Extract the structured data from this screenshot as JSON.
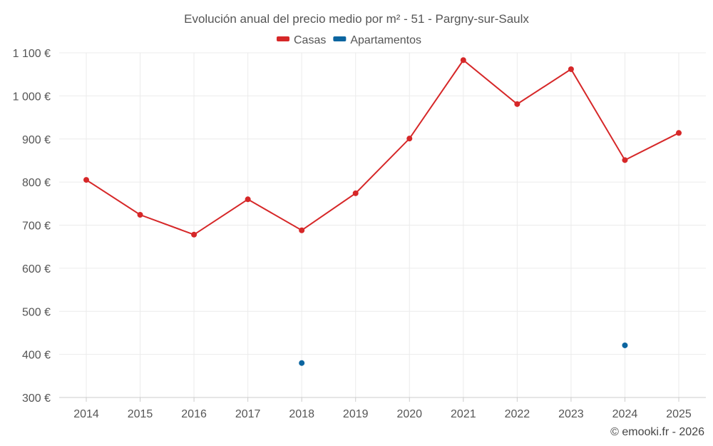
{
  "chart_data": {
    "type": "line",
    "title": "Evolución anual del precio medio por m² - 51 - Pargny-sur-Saulx",
    "xlabel": "",
    "ylabel": "",
    "categories": [
      "2014",
      "2015",
      "2016",
      "2017",
      "2018",
      "2019",
      "2020",
      "2021",
      "2022",
      "2023",
      "2024",
      "2025"
    ],
    "ylim": [
      300,
      1100
    ],
    "yticks": [
      300,
      400,
      500,
      600,
      700,
      800,
      900,
      1000,
      1100
    ],
    "ytick_labels": [
      "300 €",
      "400 €",
      "500 €",
      "600 €",
      "700 €",
      "800 €",
      "900 €",
      "1 000 €",
      "1 100 €"
    ],
    "grid": true,
    "legend_position": "top-center",
    "series": [
      {
        "name": "Casas",
        "color": "#d62728",
        "values": [
          805,
          724,
          678,
          760,
          688,
          774,
          901,
          1083,
          981,
          1062,
          851,
          914
        ]
      },
      {
        "name": "Apartamentos",
        "color": "#0b65a0",
        "values": [
          null,
          null,
          null,
          null,
          380,
          null,
          null,
          null,
          null,
          null,
          421,
          null
        ]
      }
    ]
  },
  "credit": "© emooki.fr - 2026"
}
